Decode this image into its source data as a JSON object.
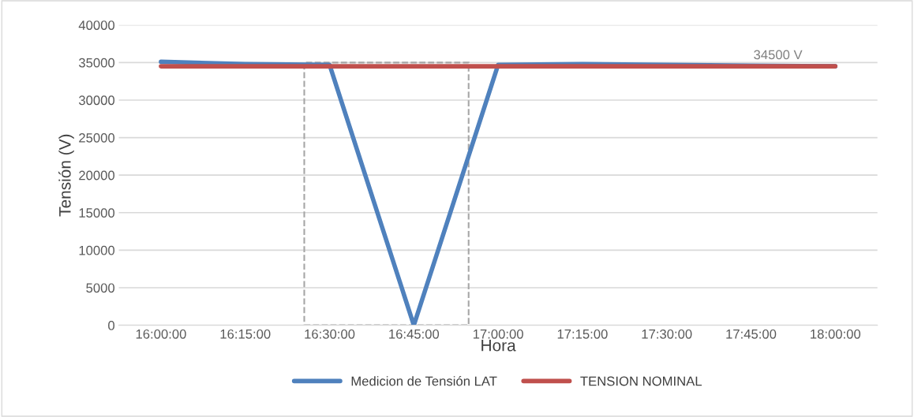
{
  "chart_data": {
    "type": "line",
    "categories": [
      "16:00:00",
      "16:15:00",
      "16:30:00",
      "16:45:00",
      "17:00:00",
      "17:15:00",
      "17:30:00",
      "17:45:00",
      "18:00:00"
    ],
    "series": [
      {
        "name": "Medicion de Tensión LAT",
        "color": "#4f81bd",
        "values": [
          35100,
          34800,
          34700,
          0,
          34700,
          34800,
          34700,
          34600,
          34500
        ]
      },
      {
        "name": "TENSION NOMINAL",
        "color": "#c0504d",
        "values": [
          34500,
          34500,
          34500,
          34500,
          34500,
          34500,
          34500,
          34500,
          34500
        ]
      }
    ],
    "xlabel": "Hora",
    "ylabel": "Tensión (V)",
    "ylim": [
      0,
      40000
    ],
    "yticks": [
      0,
      5000,
      10000,
      15000,
      20000,
      25000,
      30000,
      35000,
      40000
    ],
    "grid": "y",
    "legend": "bottom",
    "marker": "none",
    "line_style": "solid",
    "annotations": [
      {
        "text": "34500 V",
        "x": "18:00:00",
        "y": 34500
      }
    ]
  }
}
